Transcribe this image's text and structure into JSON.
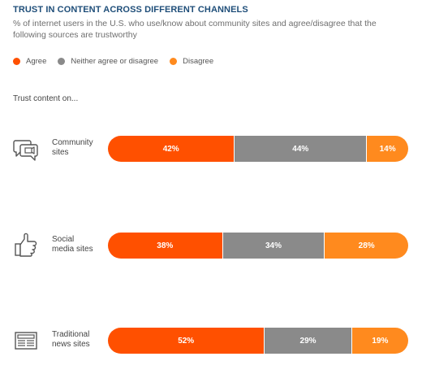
{
  "chart_data": {
    "type": "bar",
    "orientation": "horizontal",
    "stacked": true,
    "title": "TRUST IN CONTENT ACROSS DIFFERENT CHANNELS",
    "subtitle": "% of internet users in the U.S. who use/know about community sites and agree/disagree that the following sources are trustworthy",
    "prompt": "Trust content on...",
    "legend_position": "top-left",
    "categories": [
      {
        "lines": [
          "Community",
          "sites"
        ],
        "icon": "chat-bubbles-icon"
      },
      {
        "lines": [
          "Social",
          "media sites"
        ],
        "icon": "thumbs-up-icon"
      },
      {
        "lines": [
          "Traditional",
          "news sites"
        ],
        "icon": "newspaper-icon"
      }
    ],
    "series": [
      {
        "name": "Agree",
        "color": "#ff5000",
        "values": [
          42,
          38,
          52
        ]
      },
      {
        "name": "Neither agree or disagree",
        "color": "#8a8a8a",
        "values": [
          44,
          34,
          29
        ]
      },
      {
        "name": "Disagree",
        "color": "#ff8a1e",
        "values": [
          14,
          28,
          19
        ]
      }
    ],
    "value_suffix": "%"
  }
}
